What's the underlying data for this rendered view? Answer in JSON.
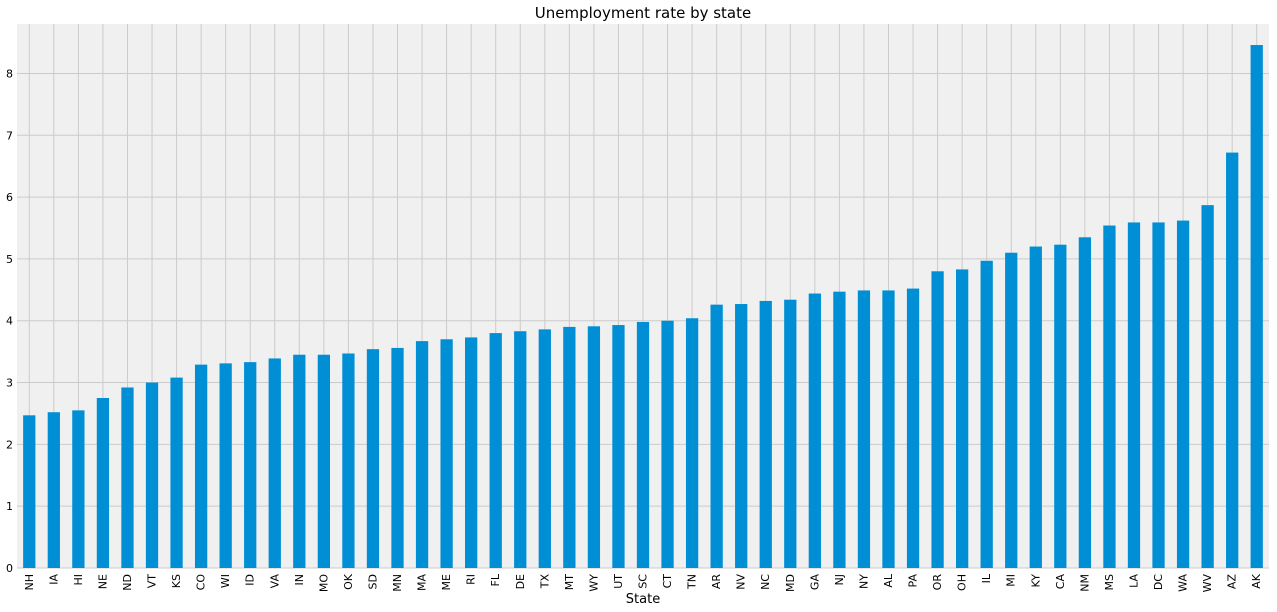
{
  "chart_data": {
    "type": "bar",
    "title": "Unemployment rate by state",
    "xlabel": "State",
    "ylabel": "",
    "categories": [
      "NH",
      "IA",
      "HI",
      "NE",
      "ND",
      "VT",
      "KS",
      "CO",
      "WI",
      "ID",
      "VA",
      "IN",
      "MO",
      "OK",
      "SD",
      "MN",
      "MA",
      "ME",
      "RI",
      "FL",
      "DE",
      "TX",
      "MT",
      "WY",
      "UT",
      "SC",
      "CT",
      "TN",
      "AR",
      "NV",
      "NC",
      "MD",
      "GA",
      "NJ",
      "NY",
      "AL",
      "PA",
      "OR",
      "OH",
      "IL",
      "MI",
      "KY",
      "CA",
      "NM",
      "MS",
      "LA",
      "DC",
      "WA",
      "WV",
      "AZ",
      "AK"
    ],
    "values": [
      2.47,
      2.52,
      2.55,
      2.75,
      2.92,
      3.0,
      3.08,
      3.29,
      3.31,
      3.33,
      3.39,
      3.45,
      3.45,
      3.47,
      3.54,
      3.56,
      3.67,
      3.7,
      3.73,
      3.8,
      3.83,
      3.86,
      3.9,
      3.91,
      3.93,
      3.98,
      4.0,
      4.04,
      4.26,
      4.27,
      4.32,
      4.34,
      4.44,
      4.47,
      4.49,
      4.49,
      4.52,
      4.8,
      4.83,
      4.97,
      5.1,
      5.2,
      5.23,
      5.35,
      5.54,
      5.59,
      5.59,
      5.62,
      5.87,
      6.72,
      8.46
    ],
    "y_ticks": [
      0,
      1,
      2,
      3,
      4,
      5,
      6,
      7,
      8
    ],
    "ylim": [
      0,
      8.8
    ],
    "grid": true,
    "legend": "none",
    "bar_color": "#008fd5",
    "background_color": "#f0f0f0",
    "grid_color": "#cbcbcb"
  }
}
